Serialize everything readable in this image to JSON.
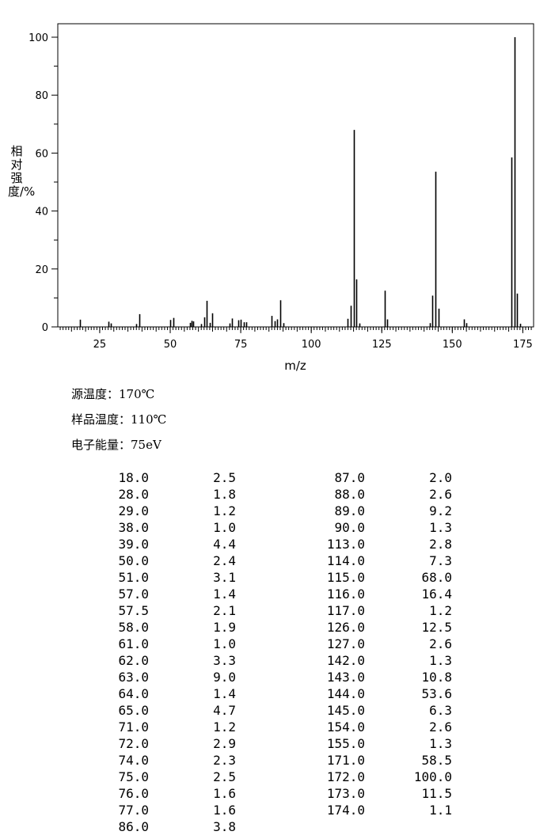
{
  "chart_data": {
    "type": "bar",
    "xlabel": "m/z",
    "ylabel": "相对强度/%",
    "xlim": [
      10,
      178
    ],
    "ylim": [
      0,
      105
    ],
    "xticks": [
      25,
      50,
      75,
      100,
      125,
      150,
      175
    ],
    "yticks": [
      0,
      20,
      40,
      60,
      80,
      100
    ],
    "grid": false,
    "peaks": [
      {
        "mz": 18.0,
        "intensity": 2.5
      },
      {
        "mz": 28.0,
        "intensity": 1.8
      },
      {
        "mz": 29.0,
        "intensity": 1.2
      },
      {
        "mz": 38.0,
        "intensity": 1.0
      },
      {
        "mz": 39.0,
        "intensity": 4.4
      },
      {
        "mz": 50.0,
        "intensity": 2.4
      },
      {
        "mz": 51.0,
        "intensity": 3.1
      },
      {
        "mz": 57.0,
        "intensity": 1.4
      },
      {
        "mz": 57.5,
        "intensity": 2.1
      },
      {
        "mz": 58.0,
        "intensity": 1.9
      },
      {
        "mz": 61.0,
        "intensity": 1.0
      },
      {
        "mz": 62.0,
        "intensity": 3.3
      },
      {
        "mz": 63.0,
        "intensity": 9.0
      },
      {
        "mz": 64.0,
        "intensity": 1.4
      },
      {
        "mz": 65.0,
        "intensity": 4.7
      },
      {
        "mz": 71.0,
        "intensity": 1.2
      },
      {
        "mz": 72.0,
        "intensity": 2.9
      },
      {
        "mz": 74.0,
        "intensity": 2.3
      },
      {
        "mz": 75.0,
        "intensity": 2.5
      },
      {
        "mz": 76.0,
        "intensity": 1.6
      },
      {
        "mz": 77.0,
        "intensity": 1.6
      },
      {
        "mz": 86.0,
        "intensity": 3.8
      },
      {
        "mz": 87.0,
        "intensity": 2.0
      },
      {
        "mz": 88.0,
        "intensity": 2.6
      },
      {
        "mz": 89.0,
        "intensity": 9.2
      },
      {
        "mz": 90.0,
        "intensity": 1.3
      },
      {
        "mz": 113.0,
        "intensity": 2.8
      },
      {
        "mz": 114.0,
        "intensity": 7.3
      },
      {
        "mz": 115.0,
        "intensity": 68.0
      },
      {
        "mz": 116.0,
        "intensity": 16.4
      },
      {
        "mz": 117.0,
        "intensity": 1.2
      },
      {
        "mz": 126.0,
        "intensity": 12.5
      },
      {
        "mz": 127.0,
        "intensity": 2.6
      },
      {
        "mz": 142.0,
        "intensity": 1.3
      },
      {
        "mz": 143.0,
        "intensity": 10.8
      },
      {
        "mz": 144.0,
        "intensity": 53.6
      },
      {
        "mz": 145.0,
        "intensity": 6.3
      },
      {
        "mz": 154.0,
        "intensity": 2.6
      },
      {
        "mz": 155.0,
        "intensity": 1.3
      },
      {
        "mz": 171.0,
        "intensity": 58.5
      },
      {
        "mz": 172.0,
        "intensity": 100.0
      },
      {
        "mz": 173.0,
        "intensity": 11.5
      },
      {
        "mz": 174.0,
        "intensity": 1.1
      }
    ]
  },
  "conditions": {
    "source_temp": "源温度：170℃",
    "sample_temp": "样品温度：110℃",
    "electron_energy": "电子能量：75eV"
  },
  "peak_table": {
    "left": [
      [
        "18.0",
        "2.5"
      ],
      [
        "28.0",
        "1.8"
      ],
      [
        "29.0",
        "1.2"
      ],
      [
        "38.0",
        "1.0"
      ],
      [
        "39.0",
        "4.4"
      ],
      [
        "50.0",
        "2.4"
      ],
      [
        "51.0",
        "3.1"
      ],
      [
        "57.0",
        "1.4"
      ],
      [
        "57.5",
        "2.1"
      ],
      [
        "58.0",
        "1.9"
      ],
      [
        "61.0",
        "1.0"
      ],
      [
        "62.0",
        "3.3"
      ],
      [
        "63.0",
        "9.0"
      ],
      [
        "64.0",
        "1.4"
      ],
      [
        "65.0",
        "4.7"
      ],
      [
        "71.0",
        "1.2"
      ],
      [
        "72.0",
        "2.9"
      ],
      [
        "74.0",
        "2.3"
      ],
      [
        "75.0",
        "2.5"
      ],
      [
        "76.0",
        "1.6"
      ],
      [
        "77.0",
        "1.6"
      ],
      [
        "86.0",
        "3.8"
      ]
    ],
    "right": [
      [
        "87.0",
        "2.0"
      ],
      [
        "88.0",
        "2.6"
      ],
      [
        "89.0",
        "9.2"
      ],
      [
        "90.0",
        "1.3"
      ],
      [
        "113.0",
        "2.8"
      ],
      [
        "114.0",
        "7.3"
      ],
      [
        "115.0",
        "68.0"
      ],
      [
        "116.0",
        "16.4"
      ],
      [
        "117.0",
        "1.2"
      ],
      [
        "126.0",
        "12.5"
      ],
      [
        "127.0",
        "2.6"
      ],
      [
        "142.0",
        "1.3"
      ],
      [
        "143.0",
        "10.8"
      ],
      [
        "144.0",
        "53.6"
      ],
      [
        "145.0",
        "6.3"
      ],
      [
        "154.0",
        "2.6"
      ],
      [
        "155.0",
        "1.3"
      ],
      [
        "171.0",
        "58.5"
      ],
      [
        "172.0",
        "100.0"
      ],
      [
        "173.0",
        "11.5"
      ],
      [
        "174.0",
        "1.1"
      ]
    ]
  }
}
